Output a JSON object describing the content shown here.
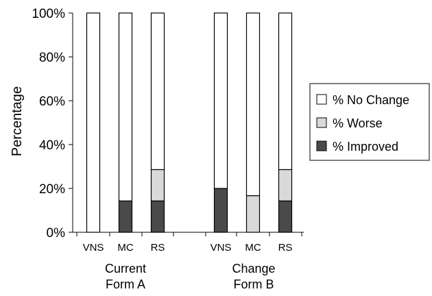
{
  "chart_data": {
    "type": "bar",
    "stacked": true,
    "stack_mode": "percent",
    "ylabel": "Percentage",
    "ylim": [
      0,
      100
    ],
    "y_ticks": [
      "0%",
      "20%",
      "40%",
      "60%",
      "80%",
      "100%"
    ],
    "y_tick_values": [
      0,
      20,
      40,
      60,
      80,
      100
    ],
    "groups": [
      {
        "label_line1": "Current",
        "label_line2": "Form A",
        "categories": [
          "VNS",
          "MC",
          "RS"
        ]
      },
      {
        "label_line1": "Change",
        "label_line2": "Form B",
        "categories": [
          "VNS",
          "MC",
          "RS"
        ]
      }
    ],
    "categories": [
      "VNS",
      "MC",
      "RS",
      "VNS",
      "MC",
      "RS"
    ],
    "series": [
      {
        "name": "% Improved",
        "color": "#4a4a4a",
        "values": [
          0,
          14.3,
          14.3,
          20,
          0,
          14.3
        ]
      },
      {
        "name": "% Worse",
        "color": "#d9d9d9",
        "values": [
          0,
          0,
          14.3,
          0,
          16.7,
          14.3
        ]
      },
      {
        "name": "% No Change",
        "color": "#ffffff",
        "values": [
          100,
          85.7,
          71.4,
          80,
          83.3,
          71.4
        ]
      }
    ],
    "legend": {
      "placement": "right",
      "order": [
        "% No Change",
        "% Worse",
        "% Improved"
      ]
    },
    "grid": false
  }
}
